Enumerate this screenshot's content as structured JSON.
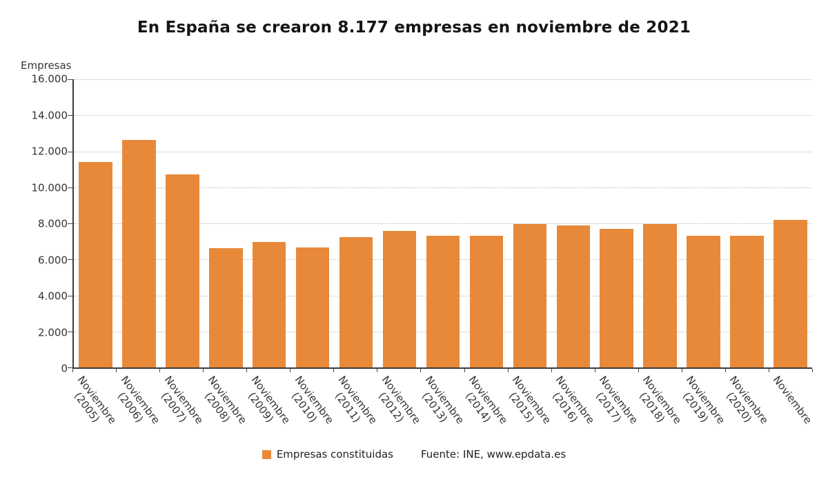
{
  "source": "Fuente: INE, www.epdata.es",
  "colors": {
    "bar": "#e8893a",
    "axis": "#3b3b3b",
    "grid": "#b9b9b9",
    "title": "#151515"
  },
  "chart_data": {
    "type": "bar",
    "title": "En España se crearon 8.177 empresas en noviembre de 2021",
    "ylabel": "Empresas",
    "xlabel": "",
    "ylim": [
      0,
      16000
    ],
    "yticks": [
      0,
      2000,
      4000,
      6000,
      8000,
      10000,
      12000,
      14000,
      16000
    ],
    "ytick_labels": [
      "0",
      "2.000",
      "4.000",
      "6.000",
      "8.000",
      "10.000",
      "12.000",
      "14.000",
      "16.000"
    ],
    "categories": [
      [
        "Noviembre",
        "(2005)"
      ],
      [
        "Noviembre",
        "(2006)"
      ],
      [
        "Noviembre",
        "(2007)"
      ],
      [
        "Noviembre",
        "(2008)"
      ],
      [
        "Noviembre",
        "(2009)"
      ],
      [
        "Noviembre",
        "(2010)"
      ],
      [
        "Noviembre",
        "(2011)"
      ],
      [
        "Noviembre",
        "(2012)"
      ],
      [
        "Noviembre",
        "(2013)"
      ],
      [
        "Noviembre",
        "(2014)"
      ],
      [
        "Noviembre",
        "(2015)"
      ],
      [
        "Noviembre",
        "(2016)"
      ],
      [
        "Noviembre",
        "(2017)"
      ],
      [
        "Noviembre",
        "(2018)"
      ],
      [
        "Noviembre",
        "(2019)"
      ],
      [
        "Noviembre",
        "(2020)"
      ],
      [
        "Noviembre",
        ""
      ]
    ],
    "series": [
      {
        "name": "Empresas constituidas",
        "values": [
          11400,
          12650,
          10700,
          6630,
          6950,
          6670,
          7250,
          7580,
          7330,
          7330,
          7960,
          7900,
          7700,
          7980,
          7320,
          7330,
          8177
        ]
      }
    ],
    "legend_position": "bottom",
    "grid": "horizontal-dotted"
  }
}
